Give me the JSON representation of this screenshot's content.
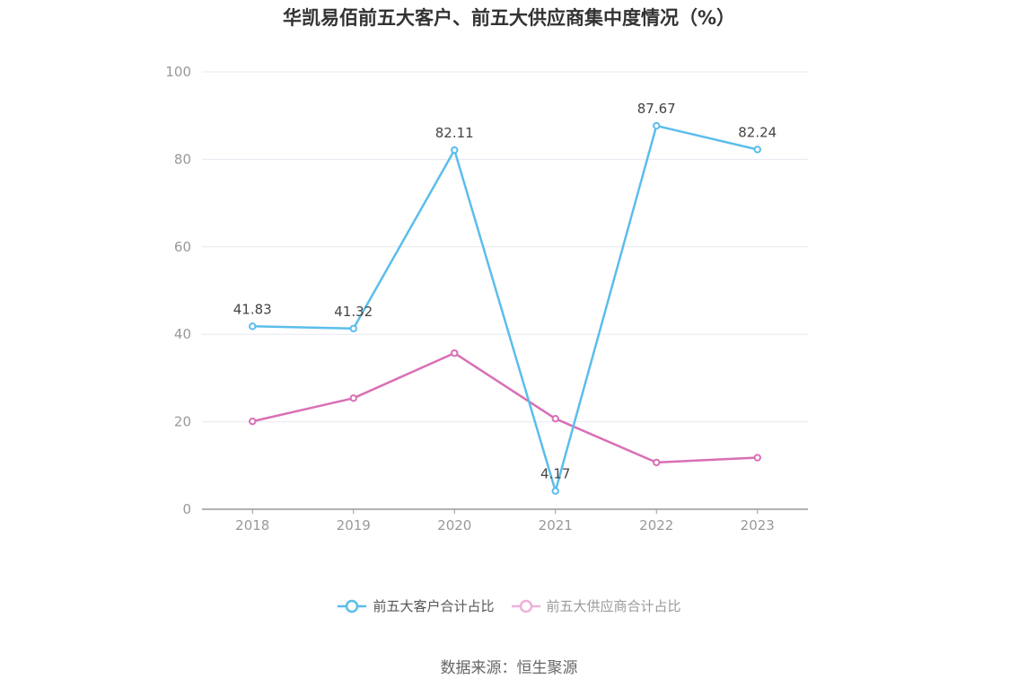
{
  "title": "华凯易佰前五大客户、前五大供应商集中度情况（%）",
  "source": "数据来源：恒生聚源",
  "colors": {
    "customers": "#5bbdec",
    "suppliers": "#d96fb5",
    "suppliers_legend": "#eeb1d9",
    "grid": "#e6e8ef",
    "axis": "#999999"
  },
  "chart_data": {
    "type": "line",
    "title": "华凯易佰前五大客户、前五大供应商集中度情况（%）",
    "categories": [
      "2018",
      "2019",
      "2020",
      "2021",
      "2022",
      "2023"
    ],
    "ylim": [
      0,
      100
    ],
    "yticks": [
      0,
      20,
      40,
      60,
      80,
      100
    ],
    "grid": true,
    "legend_position": "bottom",
    "series": [
      {
        "name": "前五大客户合计占比",
        "values": [
          41.83,
          41.32,
          82.11,
          4.17,
          87.67,
          82.24
        ],
        "labels": [
          "41.83",
          "41.32",
          "82.11",
          "4.17",
          "87.67",
          "82.24"
        ],
        "show_labels": true
      },
      {
        "name": "前五大供应商合计占比",
        "values": [
          20.1,
          25.4,
          35.7,
          20.7,
          10.7,
          11.8
        ],
        "show_labels": false
      }
    ]
  }
}
